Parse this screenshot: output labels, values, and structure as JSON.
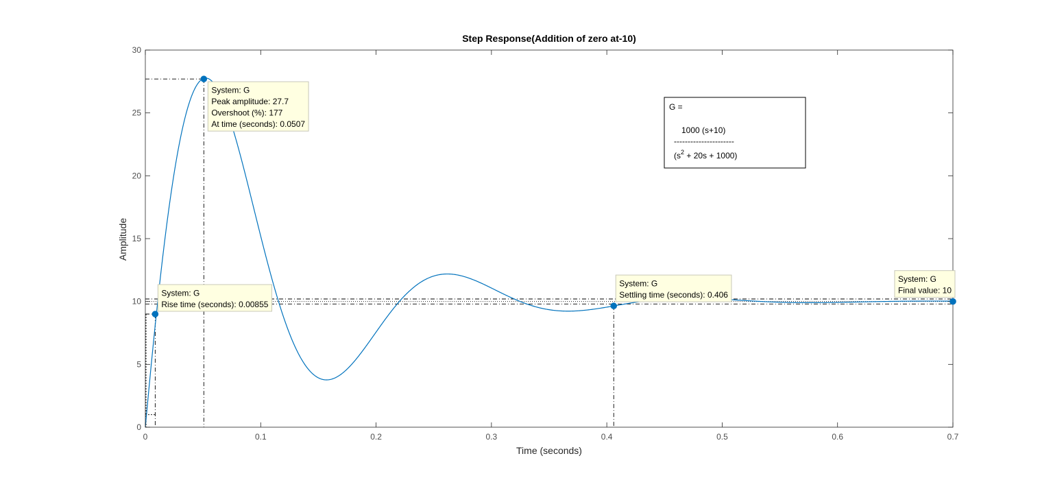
{
  "chart_data": {
    "type": "line",
    "title": "Step Response(Addition of zero at-10)",
    "xlabel": "Time (seconds)",
    "ylabel": "Amplitude",
    "xlim": [
      0,
      0.7
    ],
    "ylim": [
      0,
      30
    ],
    "x_ticks": [
      "0",
      "0.1",
      "0.2",
      "0.3",
      "0.4",
      "0.5",
      "0.6",
      "0.7"
    ],
    "y_ticks": [
      "0",
      "5",
      "10",
      "15",
      "20",
      "25",
      "30"
    ],
    "grid": false,
    "line_color": "#0072bd",
    "system": {
      "numerator_gain": 1000,
      "zero": -10,
      "denominator": [
        1,
        20,
        1000
      ]
    },
    "final_value": 10,
    "settling_band": [
      9.8,
      10.2
    ],
    "rise_band": [
      1,
      9
    ],
    "equation": {
      "lhs": "G =",
      "numerator": "1000 (s+10)",
      "rule": "----------------------",
      "denominator_prefix": "(s",
      "denominator_exp": "2",
      "denominator_suffix": " + 20s + 1000)"
    },
    "markers": [
      {
        "id": "rise",
        "x": 0.00855,
        "y": 9.0,
        "lines": [
          "System: G",
          "Rise time (seconds): 0.00855"
        ]
      },
      {
        "id": "peak",
        "x": 0.0507,
        "y": 27.7,
        "lines": [
          "System: G",
          "Peak amplitude: 27.7",
          "Overshoot (%): 177",
          "At time (seconds): 0.0507"
        ]
      },
      {
        "id": "settling",
        "x": 0.406,
        "y": 9.65,
        "lines": [
          "System: G",
          "Settling time (seconds): 0.406"
        ]
      },
      {
        "id": "final",
        "x": 0.7,
        "y": 10.0,
        "lines": [
          "System: G",
          "Final value: 10"
        ]
      }
    ]
  }
}
